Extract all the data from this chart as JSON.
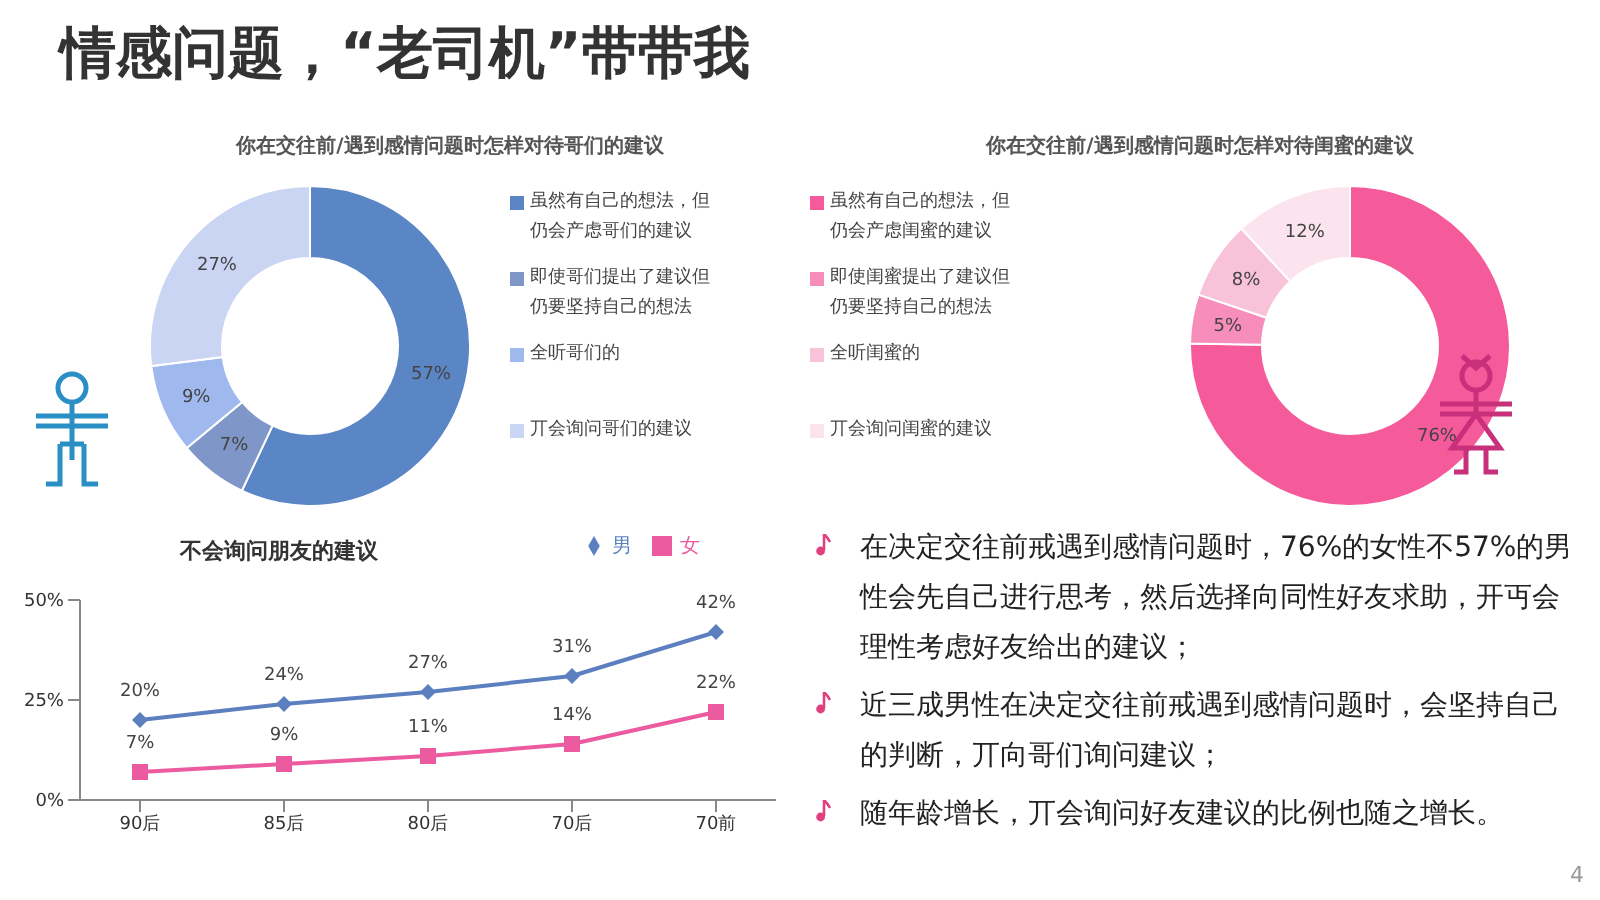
{
  "chart_data": [
    {
      "type": "donut",
      "title": "你在交往前/遇到感情问题时怎样对待哥们的建议",
      "categories": [
        "虽然有自己的想法，但仍会产虑哥们的建议",
        "即使哥们提出了建议但仍要坚持自己的想法",
        "全听哥们的",
        "丌会询问哥们的建议"
      ],
      "values": [
        57,
        7,
        9,
        27
      ],
      "colors": [
        "#5b86c5",
        "#7f96c8",
        "#9fb9ef",
        "#c9d5f3"
      ],
      "value_labels": [
        "57%",
        "7%",
        "9%",
        "27%"
      ],
      "legend": "right",
      "annotations": [
        "情感问题，“老司机”带带我"
      ]
    },
    {
      "type": "donut",
      "title": "你在交往前/遇到感情问题时怎样对待闺蜜的建议",
      "categories": [
        "虽然有自己的想法，但仍会产虑闺蜜的建议",
        "即使闺蜜提出了建议但仍要坚持自己的想法",
        "全听闺蜜的",
        "丌会询问闺蜜的建议"
      ],
      "values": [
        76,
        5,
        8,
        12
      ],
      "colors": [
        "#f55a9b",
        "#f78dbb",
        "#f8c3d9",
        "#fce4ee"
      ],
      "value_labels": [
        "76%",
        "5%",
        "8%",
        "12%"
      ],
      "legend": "left"
    },
    {
      "type": "line",
      "title": "不会询问朋友的建议",
      "categories": [
        "90后",
        "85后",
        "80后",
        "70后",
        "70前"
      ],
      "series": [
        {
          "name": "男",
          "color": "#5b7fbf",
          "marker": "diamond",
          "values": [
            20,
            24,
            27,
            31,
            42
          ],
          "value_labels": [
            "20%",
            "24%",
            "27%",
            "31%",
            "42%"
          ]
        },
        {
          "name": "女",
          "color": "#ec5aa0",
          "marker": "square",
          "values": [
            7,
            9,
            11,
            14,
            22
          ],
          "value_labels": [
            "7%",
            "9%",
            "11%",
            "14%",
            "22%"
          ]
        }
      ],
      "ylim": [
        0,
        50
      ],
      "yticks": [
        {
          "value": 0,
          "label": "0%"
        },
        {
          "value": 25,
          "label": "25%"
        },
        {
          "value": 50,
          "label": "50%"
        }
      ],
      "legend": "top right",
      "grid": false,
      "annotations": [
        "在决定交往前戒遇到感情问题时，76%的女性不57%的男性会先自己进行思考，然后选择向同性好友求助，开丏会理性考虑好友给出的建议；",
        "近三成男性在决定交往前戒遇到感情问题时，会坚持自己的判断，丌向哥们询问建议；",
        "随年龄增长，丌会询问好友建议的比例也随之增长。",
        "4"
      ]
    }
  ]
}
